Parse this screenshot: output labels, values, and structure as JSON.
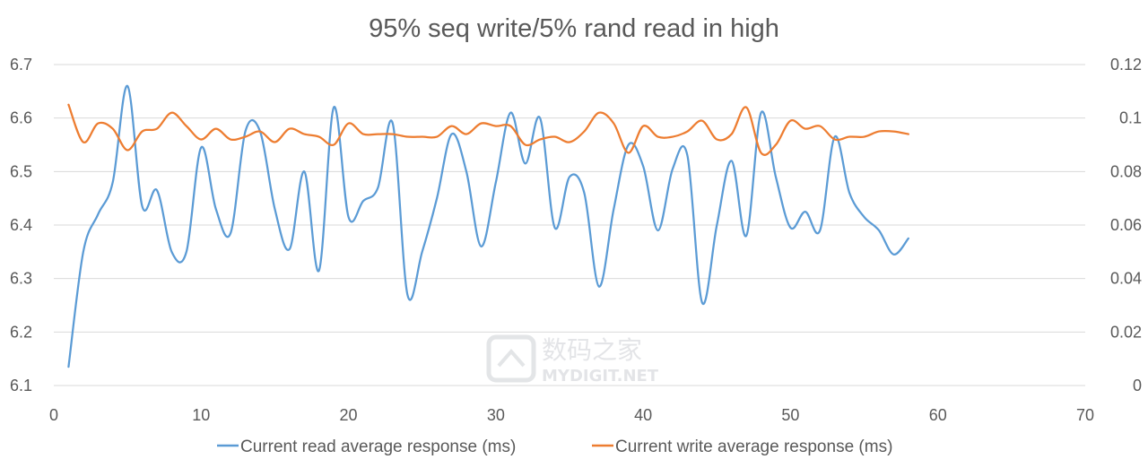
{
  "chart_data": {
    "type": "line",
    "title": "95% seq write/5% rand read in high",
    "x_ticks": [
      "0",
      "10",
      "20",
      "30",
      "40",
      "50",
      "60",
      "70"
    ],
    "y_left_ticks": [
      "6.1",
      "6.2",
      "6.3",
      "6.4",
      "6.5",
      "6.6",
      "6.7"
    ],
    "y_right_ticks": [
      "0",
      "0.02",
      "0.04",
      "0.06",
      "0.08",
      "0.1",
      "0.12"
    ],
    "xlim": [
      0,
      70
    ],
    "ylim_left": [
      6.1,
      6.7
    ],
    "ylim_right": [
      0,
      0.12
    ],
    "grid": true,
    "legend_position": "bottom",
    "x": [
      1,
      2,
      3,
      4,
      5,
      6,
      7,
      8,
      9,
      10,
      11,
      12,
      13,
      14,
      15,
      16,
      17,
      18,
      19,
      20,
      21,
      22,
      23,
      24,
      25,
      26,
      27,
      28,
      29,
      30,
      31,
      32,
      33,
      34,
      35,
      36,
      37,
      38,
      39,
      40,
      41,
      42,
      43,
      44,
      45,
      46,
      47,
      48,
      49,
      50,
      51,
      52,
      53,
      54,
      55,
      56,
      57,
      58
    ],
    "series": [
      {
        "name": "Current read average response (ms)",
        "axis": "left",
        "color": "#5b9bd5",
        "values": [
          6.135,
          6.35,
          6.42,
          6.48,
          6.66,
          6.435,
          6.465,
          6.35,
          6.35,
          6.545,
          6.43,
          6.385,
          6.575,
          6.575,
          6.43,
          6.355,
          6.5,
          6.315,
          6.62,
          6.415,
          6.445,
          6.47,
          6.59,
          6.27,
          6.35,
          6.45,
          6.57,
          6.5,
          6.36,
          6.48,
          6.61,
          6.515,
          6.6,
          6.395,
          6.49,
          6.46,
          6.285,
          6.43,
          6.55,
          6.51,
          6.39,
          6.505,
          6.53,
          6.255,
          6.4,
          6.52,
          6.38,
          6.61,
          6.49,
          6.395,
          6.425,
          6.39,
          6.565,
          6.46,
          6.415,
          6.39,
          6.345,
          6.375
        ]
      },
      {
        "name": "Current write average response (ms)",
        "axis": "right",
        "color": "#ed7d31",
        "values": [
          0.105,
          0.091,
          0.098,
          0.096,
          0.088,
          0.095,
          0.096,
          0.102,
          0.097,
          0.092,
          0.096,
          0.092,
          0.093,
          0.095,
          0.091,
          0.096,
          0.094,
          0.093,
          0.09,
          0.098,
          0.094,
          0.094,
          0.094,
          0.093,
          0.093,
          0.093,
          0.097,
          0.094,
          0.098,
          0.097,
          0.097,
          0.09,
          0.092,
          0.093,
          0.091,
          0.095,
          0.102,
          0.098,
          0.087,
          0.097,
          0.093,
          0.093,
          0.095,
          0.099,
          0.092,
          0.094,
          0.104,
          0.087,
          0.09,
          0.099,
          0.096,
          0.097,
          0.092,
          0.093,
          0.093,
          0.095,
          0.095,
          0.094
        ]
      }
    ]
  },
  "watermark": {
    "name_cn": "数码之家",
    "name_en": "MYDIGIT.NET"
  }
}
